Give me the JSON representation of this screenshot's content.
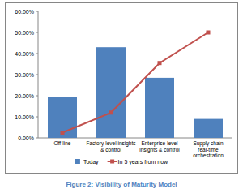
{
  "chart_data": {
    "type": "bar",
    "caption": "Figure 2: Visibility of Maturity Model",
    "categories": [
      "Off-line",
      "Factory-level insights & control",
      "Enterprise-level insights & control",
      "Supply chain real-time orchestration"
    ],
    "series": [
      {
        "name": "Today",
        "type": "bar",
        "color": "#4f81bd",
        "values": [
          19.5,
          43,
          28.5,
          9
        ]
      },
      {
        "name": "In 5 years from now",
        "type": "line",
        "color": "#c0504d",
        "marker": "square",
        "values": [
          2.5,
          12,
          35.5,
          50
        ]
      }
    ],
    "ylim": [
      0,
      60
    ],
    "yticks": [
      {
        "value": 0,
        "label": "0.00%"
      },
      {
        "value": 10,
        "label": "10.00%"
      },
      {
        "value": 20,
        "label": "20.00%"
      },
      {
        "value": 30,
        "label": "30.00%"
      },
      {
        "value": 40,
        "label": "40.00%"
      },
      {
        "value": 50,
        "label": "50.00%"
      },
      {
        "value": 60,
        "label": "60.00%"
      }
    ],
    "grid": false,
    "legend": "bottom"
  }
}
